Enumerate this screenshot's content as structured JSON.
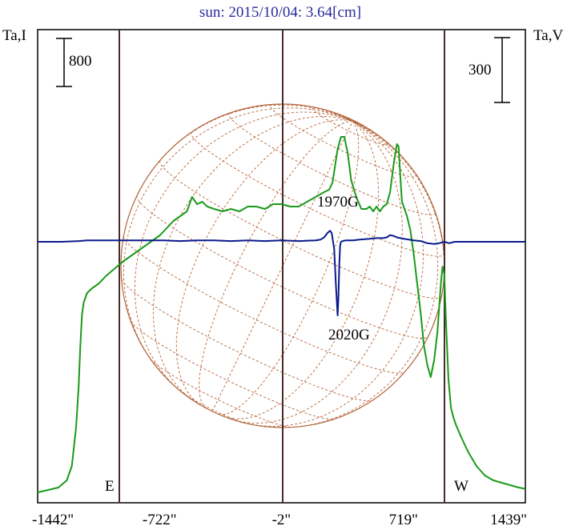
{
  "chart_data": {
    "type": "line",
    "title": "sun: 2015/10/04: 3.64[cm]",
    "x_ticks": [
      "-1442\"",
      "-722\"",
      "-2\"",
      "719\"",
      "1439\""
    ],
    "x_tick_values": [
      -1442,
      -722,
      -2,
      719,
      1439
    ],
    "xlim": [
      -1442,
      1439
    ],
    "y_left_label": "Ta,I",
    "y_right_label": "Ta,V",
    "scale_bars": {
      "left": "800",
      "right": "300"
    },
    "limb_labels": {
      "east": "E",
      "west": "W"
    },
    "annotations": [
      {
        "text": "1970G",
        "x": 290
      },
      {
        "text": "2020G",
        "x": 320
      }
    ],
    "colors": {
      "I": "#1a9a1a",
      "V": "#0a1a8c",
      "disk": "#b5653a",
      "grid": "#4a2a2a",
      "title": "#2a2a9c"
    },
    "series": [
      {
        "key": "I",
        "x": [
          -1442,
          -1380,
          -1320,
          -1270,
          -1240,
          -1215,
          -1200,
          -1190,
          -1180,
          -1170,
          -1150,
          -1120,
          -1080,
          -1040,
          -990,
          -940,
          -880,
          -820,
          -760,
          -720,
          -680,
          -640,
          -600,
          -560,
          -530,
          -500,
          -470,
          -440,
          -400,
          -350,
          -300,
          -250,
          -200,
          -150,
          -100,
          -50,
          -2,
          50,
          100,
          150,
          200,
          250,
          280,
          300,
          330,
          350,
          370,
          390,
          410,
          440,
          470,
          500,
          520,
          540,
          560,
          580,
          600,
          620,
          640,
          660,
          680,
          690,
          700,
          710,
          720,
          740,
          760,
          780,
          800,
          820,
          840,
          860,
          880,
          900,
          920,
          940,
          950,
          960,
          970,
          985,
          1000,
          1015,
          1030,
          1060,
          1100,
          1150,
          1200,
          1250,
          1300,
          1350,
          1400,
          1439
        ],
        "y": [
          0.01,
          0.02,
          0.03,
          0.06,
          0.12,
          0.28,
          0.45,
          0.62,
          0.75,
          0.8,
          0.84,
          0.86,
          0.88,
          0.91,
          0.94,
          0.97,
          1.0,
          1.03,
          1.06,
          1.08,
          1.11,
          1.14,
          1.16,
          1.18,
          1.24,
          1.21,
          1.22,
          1.2,
          1.19,
          1.18,
          1.19,
          1.18,
          1.2,
          1.2,
          1.19,
          1.21,
          1.21,
          1.2,
          1.2,
          1.22,
          1.24,
          1.26,
          1.27,
          1.3,
          1.44,
          1.49,
          1.49,
          1.42,
          1.31,
          1.24,
          1.19,
          1.19,
          1.2,
          1.18,
          1.2,
          1.18,
          1.2,
          1.21,
          1.26,
          1.37,
          1.46,
          1.45,
          1.33,
          1.22,
          1.2,
          1.16,
          1.1,
          1.0,
          0.88,
          0.76,
          0.62,
          0.54,
          0.49,
          0.56,
          0.68,
          0.88,
          0.95,
          0.92,
          0.72,
          0.48,
          0.36,
          0.32,
          0.29,
          0.24,
          0.18,
          0.12,
          0.08,
          0.06,
          0.05,
          0.04,
          0.03,
          0.025
        ]
      },
      {
        "key": "V",
        "x": [
          -1442,
          -1300,
          -1200,
          -1150,
          -1120,
          -1100,
          -1000,
          -900,
          -800,
          -700,
          -600,
          -500,
          -400,
          -300,
          -200,
          -100,
          -2,
          100,
          200,
          230,
          250,
          270,
          285,
          295,
          300,
          310,
          320,
          330,
          335,
          340,
          345,
          350,
          360,
          380,
          420,
          460,
          520,
          560,
          600,
          620,
          640,
          660,
          680,
          700,
          720,
          750,
          780,
          820,
          860,
          900,
          930,
          960,
          990,
          1020,
          1060,
          1100,
          1200,
          1300,
          1400,
          1439
        ],
        "y": [
          0.0,
          0.0,
          0.01,
          0.02,
          0.02,
          0.02,
          0.02,
          0.02,
          0.02,
          0.02,
          0.01,
          0.02,
          0.02,
          0.01,
          0.02,
          0.01,
          0.02,
          0.01,
          0.02,
          0.03,
          0.06,
          0.12,
          0.15,
          0.12,
          0.05,
          -0.1,
          -0.6,
          -1.0,
          -0.75,
          -0.3,
          -0.05,
          0.0,
          0.01,
          0.02,
          0.02,
          0.03,
          0.04,
          0.05,
          0.05,
          0.06,
          0.09,
          0.08,
          0.06,
          0.05,
          0.04,
          0.03,
          0.02,
          0.01,
          -0.02,
          -0.03,
          -0.02,
          0.0,
          -0.02,
          0.0,
          0.0,
          0.0,
          0.0,
          0.0,
          0.0,
          0.0
        ]
      }
    ],
    "grid": false
  }
}
